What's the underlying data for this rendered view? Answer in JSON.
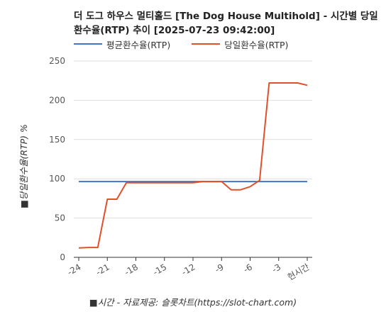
{
  "chart_data": {
    "type": "line",
    "title": "더 도그 하우스 멀티홀드 [The Dog House Multihold] - 시간별 당일 환수율(RTP) 추이 [2025-07-23 09:42:00]",
    "xlabel": "■시간 - 자료제공: 슬롯차트(https://slot-chart.com)",
    "ylabel": "■당일환수율(RTP) %",
    "x": [
      -24,
      -23,
      -22,
      -21,
      -20,
      -19,
      -18,
      -17,
      -16,
      -15,
      -14,
      -13,
      -12,
      -11,
      -10,
      -9,
      -8,
      -7,
      -6,
      -5,
      -4,
      -3,
      -2,
      -1,
      0
    ],
    "xticks": [
      -24,
      -21,
      -18,
      -15,
      -12,
      -9,
      -6,
      -3,
      0
    ],
    "xtick_labels": [
      "-24",
      "-21",
      "-18",
      "-15",
      "-12",
      "-9",
      "-6",
      "-3",
      "현시간"
    ],
    "yticks": [
      0,
      50,
      100,
      150,
      200,
      250
    ],
    "ylim": [
      0,
      250
    ],
    "grid": true,
    "legend_position": "top-left",
    "series": [
      {
        "name": "평균환수율(RTP)",
        "color": "#4472c4",
        "values": [
          96.5,
          96.5,
          96.5,
          96.5,
          96.5,
          96.5,
          96.5,
          96.5,
          96.5,
          96.5,
          96.5,
          96.5,
          96.5,
          96.5,
          96.5,
          96.5,
          96.5,
          96.5,
          96.5,
          96.5,
          96.5,
          96.5,
          96.5,
          96.5,
          96.5
        ]
      },
      {
        "name": "당일환수율(RTP)",
        "color": "#e0502a",
        "values": [
          12,
          12.5,
          12.5,
          74,
          74,
          95,
          95,
          95,
          95,
          95,
          95,
          95,
          95,
          96.5,
          96.5,
          96.5,
          86,
          86,
          90,
          98,
          222,
          222,
          222,
          222,
          219
        ]
      }
    ]
  }
}
